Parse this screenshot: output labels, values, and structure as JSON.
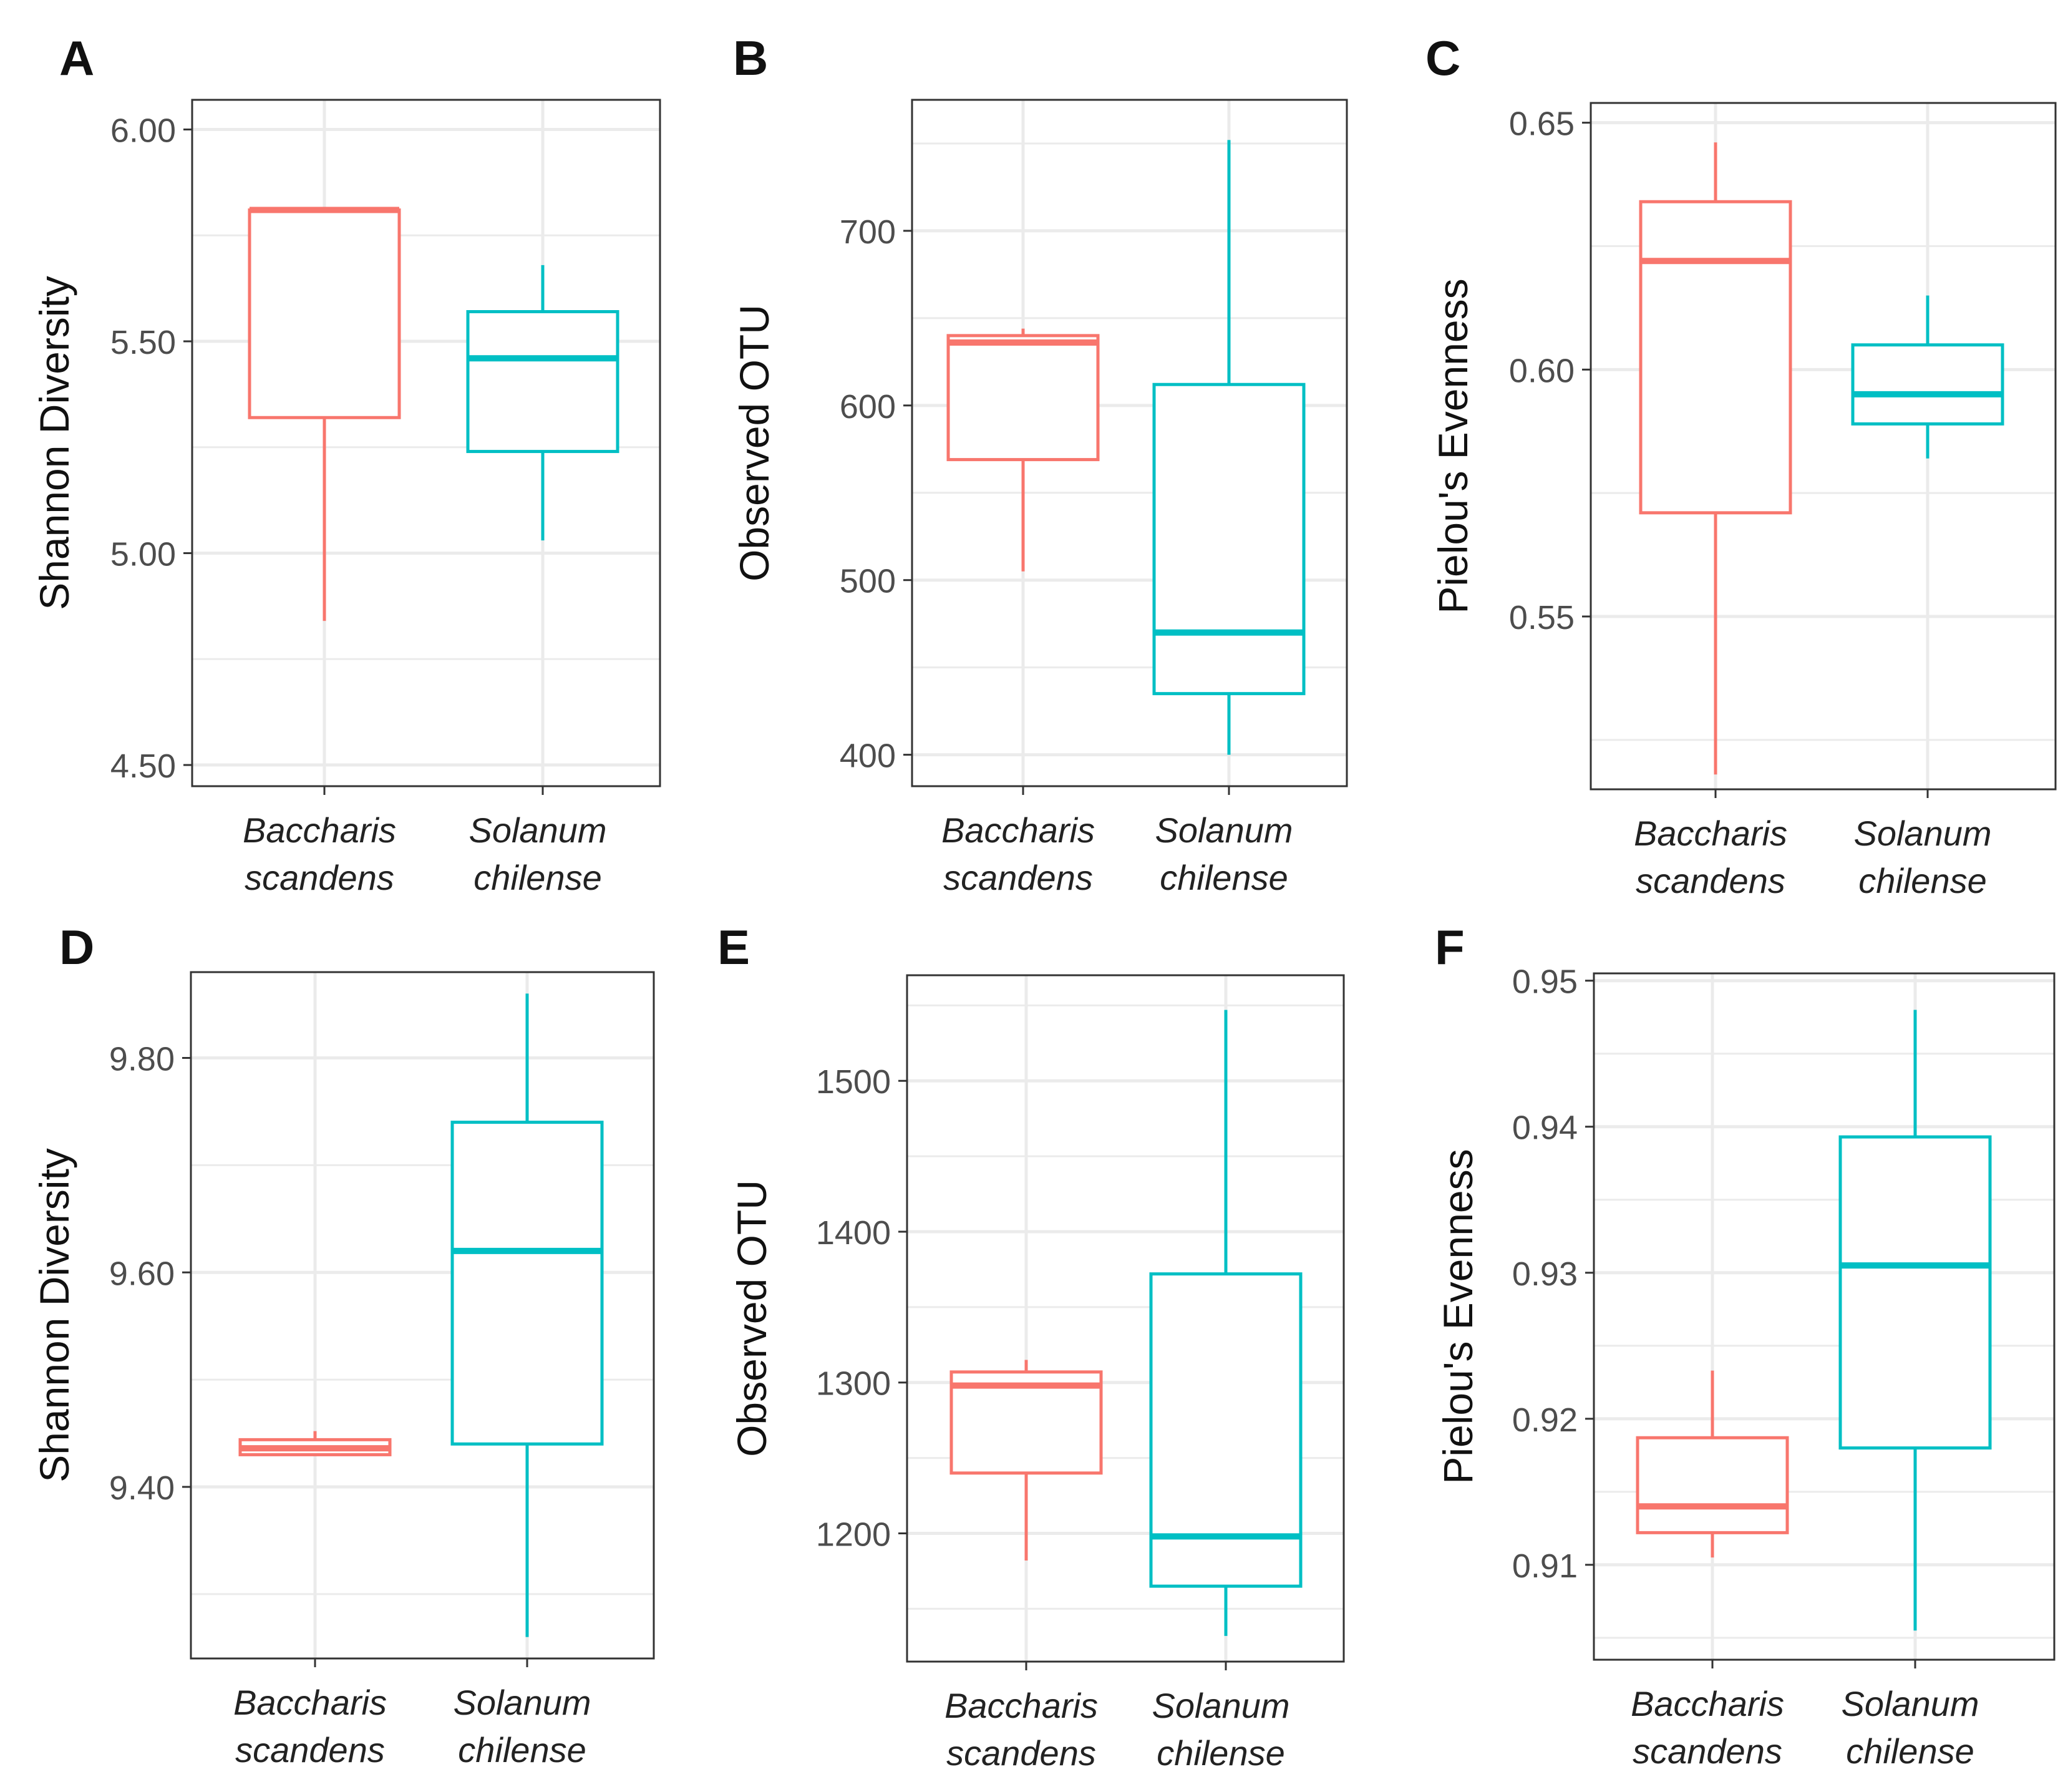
{
  "colors": {
    "baccharis": "#f8766d",
    "solanum": "#00bfc4",
    "grid": "#ebebeb",
    "axis_text": "#4d4d4d",
    "panel_border": "#333333"
  },
  "chart_data": [
    {
      "panel": "A",
      "type": "box",
      "ylabel": "Shannon Diversity",
      "ylim": [
        4.45,
        6.07
      ],
      "yticks": [
        4.5,
        5.0,
        5.5,
        6.0
      ],
      "ytick_labels": [
        "4.50",
        "5.00",
        "5.50",
        "6.00"
      ],
      "categories": [
        {
          "line1": "Baccharis",
          "line2": "scandens"
        },
        {
          "line1": "Solanum",
          "line2": "chilense"
        }
      ],
      "boxes": [
        {
          "min": 4.84,
          "q1": 5.32,
          "median": 5.81,
          "q3": 5.81,
          "max": 5.81
        },
        {
          "min": 5.03,
          "q1": 5.24,
          "median": 5.46,
          "q3": 5.57,
          "max": 5.68
        }
      ]
    },
    {
      "panel": "B",
      "type": "box",
      "ylabel": "Observed OTU",
      "ylim": [
        382,
        775
      ],
      "yticks": [
        400,
        500,
        600,
        700
      ],
      "ytick_labels": [
        "400",
        "500",
        "600",
        "700"
      ],
      "categories": [
        {
          "line1": "Baccharis",
          "line2": "scandens"
        },
        {
          "line1": "Solanum",
          "line2": "chilense"
        }
      ],
      "boxes": [
        {
          "min": 505,
          "q1": 569,
          "median": 636,
          "q3": 640,
          "max": 644
        },
        {
          "min": 400,
          "q1": 435,
          "median": 470,
          "q3": 612,
          "max": 752
        }
      ]
    },
    {
      "panel": "C",
      "type": "box",
      "ylabel": "Pielou's Evenness",
      "ylim": [
        0.515,
        0.654
      ],
      "yticks": [
        0.55,
        0.6,
        0.65
      ],
      "ytick_labels": [
        "0.55",
        "0.60",
        "0.65"
      ],
      "categories": [
        {
          "line1": "Baccharis",
          "line2": "scandens"
        },
        {
          "line1": "Solanum",
          "line2": "chilense"
        }
      ],
      "boxes": [
        {
          "min": 0.518,
          "q1": 0.571,
          "median": 0.622,
          "q3": 0.634,
          "max": 0.646
        },
        {
          "min": 0.582,
          "q1": 0.589,
          "median": 0.595,
          "q3": 0.605,
          "max": 0.615
        }
      ]
    },
    {
      "panel": "D",
      "type": "box",
      "ylabel": "Shannon Diversity",
      "ylim": [
        9.24,
        9.88
      ],
      "yticks": [
        9.4,
        9.6,
        9.8
      ],
      "ytick_labels": [
        "9.40",
        "9.60",
        "9.80"
      ],
      "categories": [
        {
          "line1": "Baccharis",
          "line2": "scandens"
        },
        {
          "line1": "Solanum",
          "line2": "chilense"
        }
      ],
      "boxes": [
        {
          "min": 9.43,
          "q1": 9.43,
          "median": 9.436,
          "q3": 9.444,
          "max": 9.452
        },
        {
          "min": 9.26,
          "q1": 9.44,
          "median": 9.62,
          "q3": 9.74,
          "max": 9.86
        }
      ]
    },
    {
      "panel": "E",
      "type": "box",
      "ylabel": "Observed OTU",
      "ylim": [
        1115,
        1570
      ],
      "yticks": [
        1200,
        1300,
        1400,
        1500
      ],
      "ytick_labels": [
        "1200",
        "1300",
        "1400",
        "1500"
      ],
      "categories": [
        {
          "line1": "Baccharis",
          "line2": "scandens"
        },
        {
          "line1": "Solanum",
          "line2": "chilense"
        }
      ],
      "boxes": [
        {
          "min": 1182,
          "q1": 1240,
          "median": 1298,
          "q3": 1307,
          "max": 1315
        },
        {
          "min": 1132,
          "q1": 1165,
          "median": 1198,
          "q3": 1372,
          "max": 1547
        }
      ]
    },
    {
      "panel": "F",
      "type": "box",
      "ylabel": "Pielou's Evenness",
      "ylim": [
        0.9035,
        0.9505
      ],
      "yticks": [
        0.91,
        0.92,
        0.93,
        0.94,
        0.95
      ],
      "ytick_labels": [
        "0.91",
        "0.92",
        "0.93",
        "0.94",
        "0.95"
      ],
      "categories": [
        {
          "line1": "Baccharis",
          "line2": "scandens"
        },
        {
          "line1": "Solanum",
          "line2": "chilense"
        }
      ],
      "boxes": [
        {
          "min": 0.9105,
          "q1": 0.9122,
          "median": 0.914,
          "q3": 0.9187,
          "max": 0.9233
        },
        {
          "min": 0.9055,
          "q1": 0.918,
          "median": 0.9305,
          "q3": 0.9393,
          "max": 0.948
        }
      ]
    }
  ]
}
